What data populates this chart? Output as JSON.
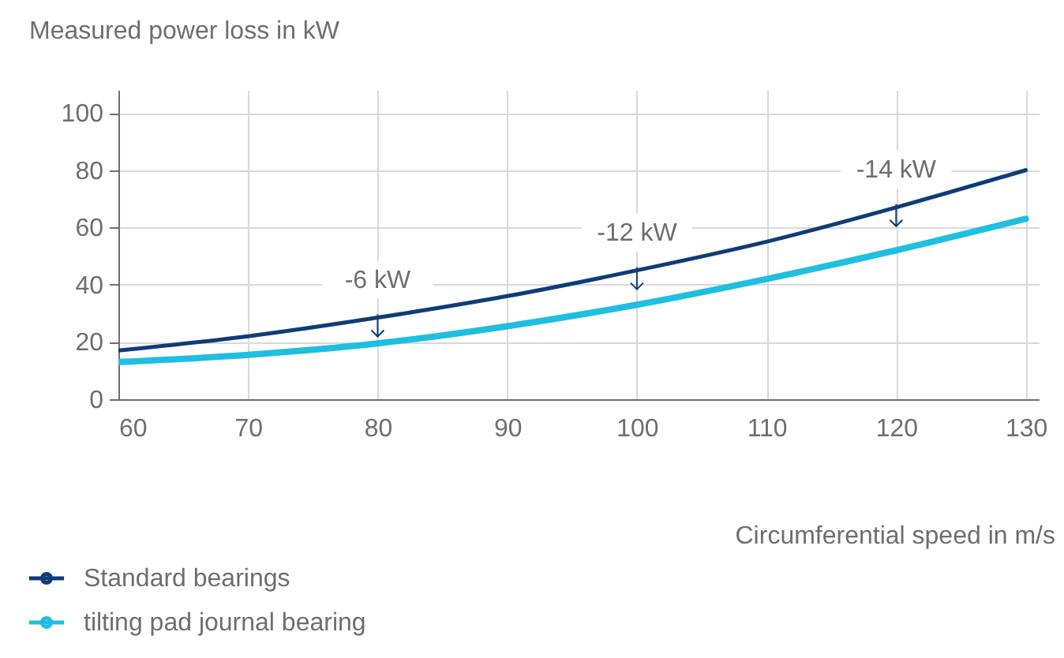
{
  "chart_data": {
    "type": "line",
    "ylabel": "Measured power loss in kW",
    "xlabel": "Circumferential speed in m/s",
    "x": [
      60,
      70,
      80,
      90,
      100,
      110,
      120,
      130
    ],
    "series": [
      {
        "name": "Standard bearings",
        "color": "#0f3c78",
        "values": [
          17,
          22,
          28.5,
          36,
          45,
          55,
          67,
          80
        ]
      },
      {
        "name": "tilting pad journal bearing",
        "color": "#1fbfe0",
        "values": [
          13,
          15.5,
          19.5,
          25.5,
          33,
          42,
          52,
          63
        ]
      }
    ],
    "xlim": [
      60,
      131
    ],
    "xticks": [
      60,
      70,
      80,
      90,
      100,
      110,
      120,
      130
    ],
    "ylim": [
      0,
      108
    ],
    "yticks": [
      0,
      20,
      40,
      60,
      80,
      100
    ],
    "annotations": [
      {
        "text": "-6 kW",
        "x": 80,
        "y": 28.5
      },
      {
        "text": "-12 kW",
        "x": 100,
        "y": 45
      },
      {
        "text": "-14 kW",
        "x": 120,
        "y": 67
      }
    ],
    "grid": true,
    "legend": "bottom left"
  }
}
